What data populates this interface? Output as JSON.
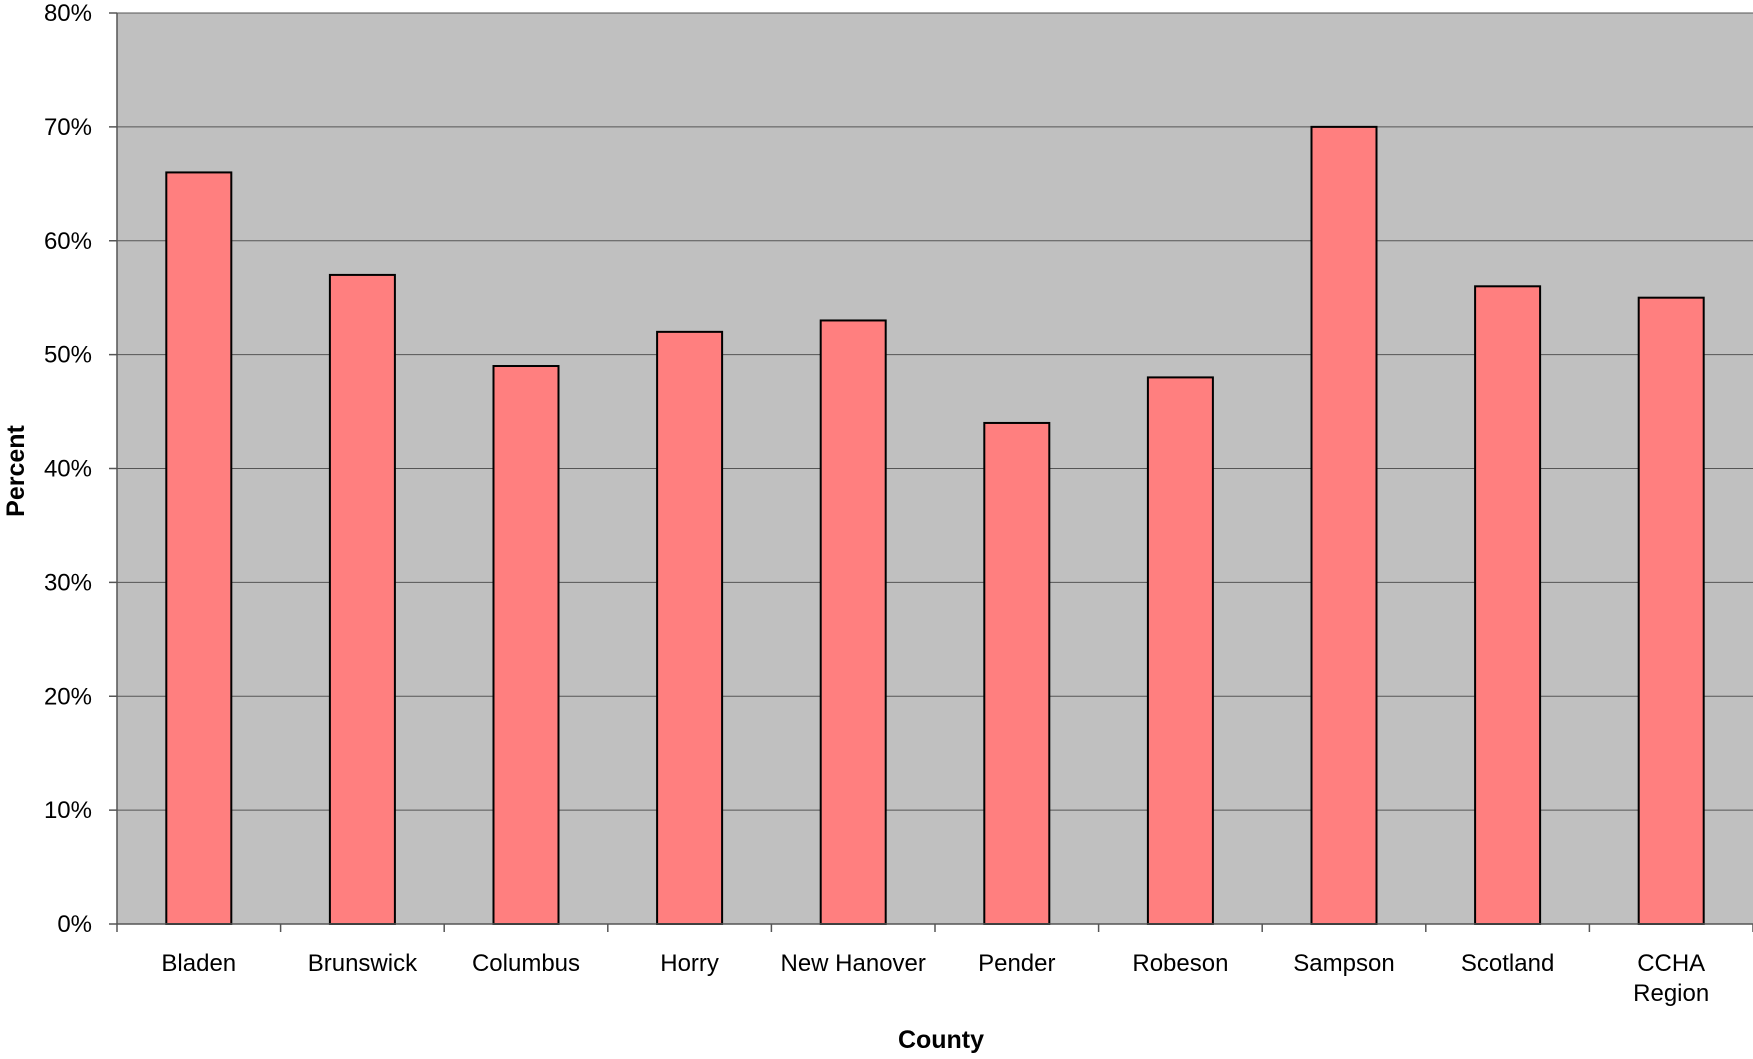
{
  "chart_data": {
    "type": "bar",
    "categories": [
      "Bladen",
      "Brunswick",
      "Columbus",
      "Horry",
      "New Hanover",
      "Pender",
      "Robeson",
      "Sampson",
      "Scotland",
      "CCHA Region"
    ],
    "category_label_lines": [
      [
        "Bladen"
      ],
      [
        "Brunswick"
      ],
      [
        "Columbus"
      ],
      [
        "Horry"
      ],
      [
        "New Hanover"
      ],
      [
        "Pender"
      ],
      [
        "Robeson"
      ],
      [
        "Sampson"
      ],
      [
        "Scotland"
      ],
      [
        "CCHA",
        "Region"
      ]
    ],
    "values": [
      66,
      57,
      49,
      52,
      53,
      44,
      48,
      70,
      56,
      55
    ],
    "value_unit": "%",
    "title": "",
    "xlabel": "County",
    "ylabel": "Percent",
    "ylim": [
      0,
      80
    ],
    "yticks": [
      0,
      10,
      20,
      30,
      40,
      50,
      60,
      70,
      80
    ],
    "ytick_labels": [
      "0%",
      "10%",
      "20%",
      "30%",
      "40%",
      "50%",
      "60%",
      "70%",
      "80%"
    ],
    "grid": true,
    "legend": "none",
    "colors": {
      "bar_fill": "#ff7f7f",
      "bar_stroke": "#000000",
      "plot_background": "#c0c0c0",
      "gridline": "#555555",
      "axis": "#555555"
    }
  }
}
